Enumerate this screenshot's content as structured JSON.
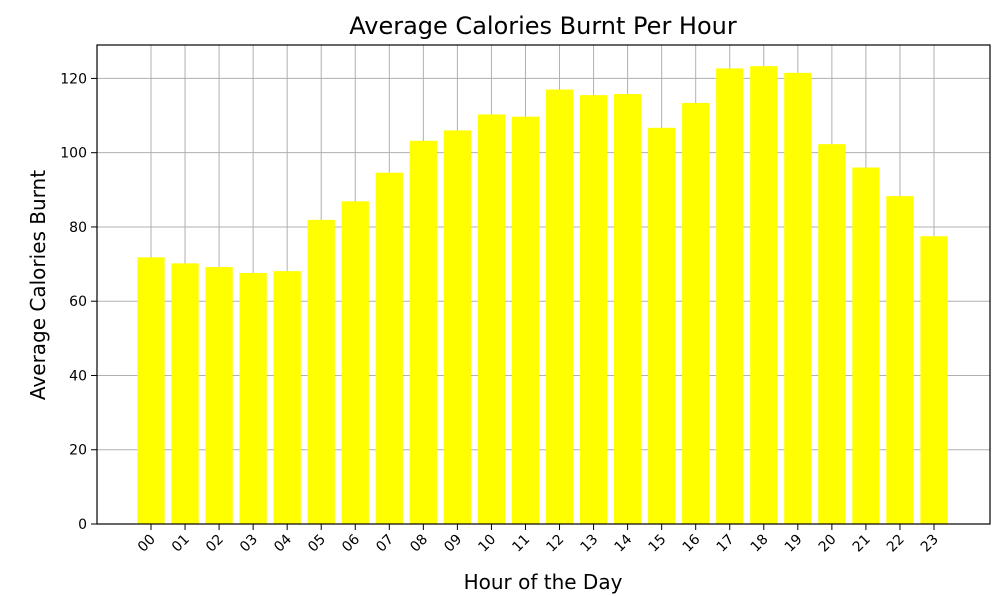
{
  "chart_data": {
    "type": "bar",
    "title": "Average Calories Burnt Per Hour",
    "xlabel": "Hour of the Day",
    "ylabel": "Average Calories Burnt",
    "categories": [
      "00",
      "01",
      "02",
      "03",
      "04",
      "05",
      "06",
      "07",
      "08",
      "09",
      "10",
      "11",
      "12",
      "13",
      "14",
      "15",
      "16",
      "17",
      "18",
      "19",
      "20",
      "21",
      "22",
      "23"
    ],
    "values": [
      71.8,
      70.2,
      69.2,
      67.6,
      68.1,
      81.9,
      86.9,
      94.6,
      103.2,
      106.0,
      110.3,
      109.7,
      117.0,
      115.5,
      115.8,
      106.7,
      113.4,
      122.7,
      123.3,
      121.5,
      102.3,
      96.0,
      88.3,
      77.5
    ],
    "ylim": [
      0,
      129
    ],
    "yticks": [
      0,
      20,
      40,
      60,
      80,
      100,
      120
    ],
    "bar_color": "#ffff00",
    "grid": true
  }
}
